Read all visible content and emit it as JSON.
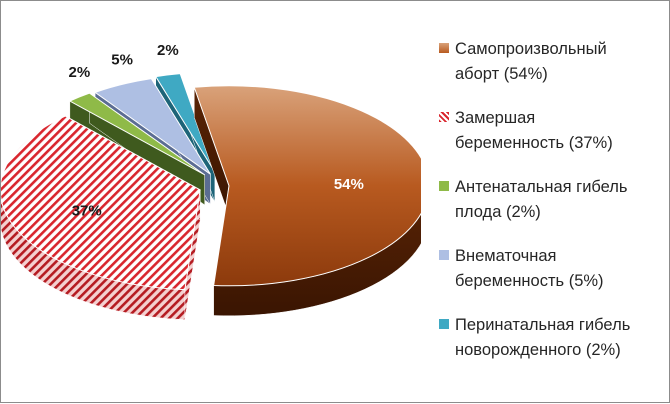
{
  "chart_data": {
    "type": "pie",
    "style": "3d-exploded",
    "slices": [
      {
        "label": "Самопроизвольный аборт",
        "value": 54,
        "data_label": "54%",
        "legend_line1": "Самопроизвольный",
        "legend_line2": "аборт (54%)",
        "color": "#b55a1f",
        "pattern": "gradient"
      },
      {
        "label": "Замершая беременность",
        "value": 37,
        "data_label": "37%",
        "legend_line1": "Замершая",
        "legend_line2": "беременность (37%)",
        "color": "#d9262e",
        "pattern": "diagonal-stripes"
      },
      {
        "label": "Антенатальная гибель плода",
        "value": 2,
        "data_label": "2%",
        "legend_line1": "Антенатальная гибель",
        "legend_line2": "плода (2%)",
        "color": "#8fba48"
      },
      {
        "label": "Внематочная беременность",
        "value": 5,
        "data_label": "5%",
        "legend_line1": "Внематочная",
        "legend_line2": "беременность (5%)",
        "color": "#aebfe3"
      },
      {
        "label": "Перинатальная гибель новорожденного",
        "value": 2,
        "data_label": "2%",
        "legend_line1": "Перинатальная гибель",
        "legend_line2": "новорожденного (2%)",
        "color": "#3fa9c3"
      }
    ],
    "legend_position": "right"
  }
}
